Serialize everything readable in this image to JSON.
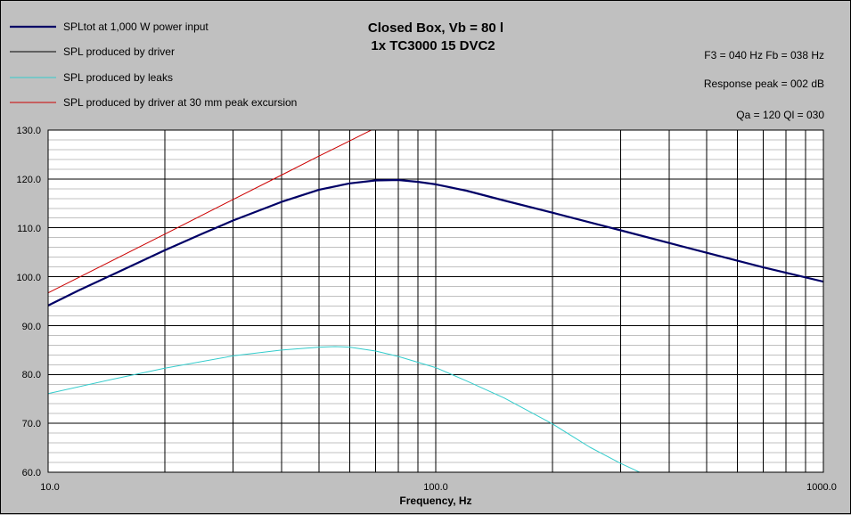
{
  "chart_data": {
    "type": "line",
    "title": [
      "Closed Box, Vb = 80 l",
      "1x TC3000 15 DVC2"
    ],
    "xlabel": "Frequency, Hz",
    "ylabel": "",
    "x_scale": "log",
    "xlim": [
      10,
      1000
    ],
    "ylim": [
      60,
      130
    ],
    "x_ticks": [
      "10.0",
      "100.0",
      "1000.0"
    ],
    "y_ticks": [
      "130.0",
      "120.0",
      "110.0",
      "100.0",
      "90.0",
      "80.0",
      "70.0",
      "60.0"
    ],
    "grid": true,
    "legend_position": "top-left",
    "annotations": [
      "F3 = 040 Hz  Fb = 038 Hz",
      "Response peak = 002 dB",
      "Qa = 120  Ql = 030"
    ],
    "series": [
      {
        "name": "SPLtot at 1,000 W power input",
        "color": "#000066",
        "width": 2.2,
        "points": [
          [
            10,
            94.1
          ],
          [
            12,
            97.2
          ],
          [
            15,
            100.8
          ],
          [
            20,
            105.4
          ],
          [
            25,
            108.8
          ],
          [
            30,
            111.5
          ],
          [
            40,
            115.3
          ],
          [
            50,
            117.8
          ],
          [
            60,
            119.1
          ],
          [
            70,
            119.7
          ],
          [
            80,
            119.8
          ],
          [
            90,
            119.4
          ],
          [
            100,
            118.9
          ],
          [
            120,
            117.6
          ],
          [
            150,
            115.6
          ],
          [
            200,
            113.1
          ],
          [
            300,
            109.5
          ],
          [
            400,
            106.9
          ],
          [
            500,
            104.9
          ],
          [
            700,
            101.9
          ],
          [
            1000,
            99.0
          ]
        ]
      },
      {
        "name": "SPL produced by driver",
        "color": "#000000",
        "width": 1,
        "points": []
      },
      {
        "name": "SPL produced by leaks",
        "color": "#33cccc",
        "width": 1,
        "points": [
          [
            10,
            76.1
          ],
          [
            15,
            79.2
          ],
          [
            20,
            81.3
          ],
          [
            30,
            83.8
          ],
          [
            40,
            85.0
          ],
          [
            50,
            85.6
          ],
          [
            55,
            85.7
          ],
          [
            60,
            85.6
          ],
          [
            70,
            84.8
          ],
          [
            80,
            83.7
          ],
          [
            100,
            81.4
          ],
          [
            120,
            78.7
          ],
          [
            150,
            75.2
          ],
          [
            200,
            69.9
          ],
          [
            250,
            65.1
          ],
          [
            300,
            61.8
          ],
          [
            340,
            59.8
          ]
        ]
      },
      {
        "name": "SPL produced by driver at 30 mm peak excursion",
        "color": "#cc0000",
        "width": 1,
        "points": [
          [
            10,
            96.7
          ],
          [
            20,
            108.7
          ],
          [
            30,
            115.8
          ],
          [
            40,
            120.8
          ],
          [
            50,
            124.7
          ],
          [
            60,
            127.8
          ],
          [
            69,
            130.2
          ]
        ]
      }
    ]
  }
}
